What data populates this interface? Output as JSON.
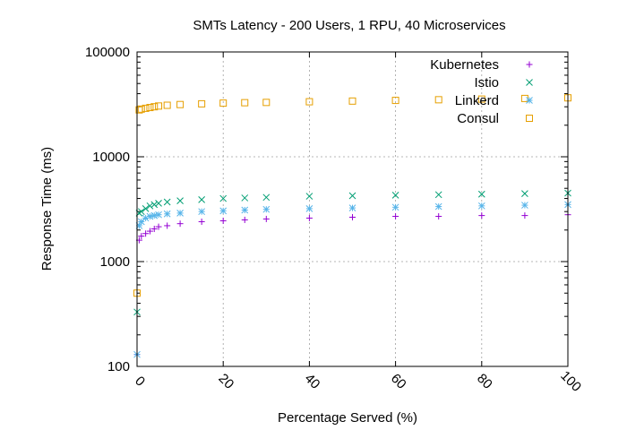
{
  "chart_data": {
    "type": "scatter",
    "title": "SMTs Latency - 200 Users, 1 RPU, 40 Microservices",
    "xlabel": "Percentage Served (%)",
    "ylabel": "Response Time (ms)",
    "xlim": [
      0,
      100
    ],
    "ylim": [
      100,
      100000
    ],
    "y_scale": "log",
    "grid": true,
    "legend_position": "top-right",
    "x_ticks": [
      "0",
      "20",
      "40",
      "60",
      "80",
      "100"
    ],
    "y_ticks": [
      "100",
      "1000",
      "10000",
      "100000"
    ],
    "x_tick_values": [
      0,
      20,
      40,
      60,
      80,
      100
    ],
    "y_tick_values": [
      100,
      1000,
      10000,
      100000
    ],
    "series": [
      {
        "name": "Kubernetes",
        "marker": "plus",
        "color": "#9400d3",
        "x": [
          0,
          0.5,
          1,
          2,
          3,
          4,
          5,
          7,
          10,
          15,
          20,
          25,
          30,
          40,
          50,
          60,
          70,
          80,
          90,
          100
        ],
        "y": [
          130,
          1600,
          1750,
          1850,
          1950,
          2050,
          2150,
          2200,
          2300,
          2400,
          2450,
          2500,
          2550,
          2600,
          2650,
          2700,
          2700,
          2750,
          2750,
          2800
        ]
      },
      {
        "name": "Istio",
        "marker": "cross",
        "color": "#009e73",
        "x": [
          0,
          0.5,
          1,
          2,
          3,
          4,
          5,
          7,
          10,
          15,
          20,
          25,
          30,
          40,
          50,
          60,
          70,
          80,
          90,
          100
        ],
        "y": [
          330,
          2900,
          3000,
          3200,
          3400,
          3500,
          3600,
          3700,
          3800,
          3900,
          4000,
          4050,
          4100,
          4200,
          4250,
          4300,
          4350,
          4400,
          4450,
          4500
        ]
      },
      {
        "name": "Linkerd",
        "marker": "asterisk",
        "color": "#56b4e9",
        "x": [
          0,
          0.5,
          1,
          2,
          3,
          4,
          5,
          7,
          10,
          15,
          20,
          25,
          30,
          40,
          50,
          60,
          70,
          80,
          90,
          100
        ],
        "y": [
          130,
          2200,
          2400,
          2600,
          2700,
          2750,
          2800,
          2850,
          2900,
          3000,
          3050,
          3100,
          3150,
          3200,
          3250,
          3300,
          3350,
          3400,
          3450,
          3500
        ]
      },
      {
        "name": "Consul",
        "marker": "square",
        "color": "#e69f00",
        "x": [
          0,
          0.5,
          1,
          2,
          3,
          4,
          5,
          7,
          10,
          15,
          20,
          25,
          30,
          40,
          50,
          60,
          70,
          80,
          90,
          100
        ],
        "y": [
          500,
          28000,
          28500,
          29000,
          29500,
          30000,
          30500,
          31000,
          31500,
          32000,
          32500,
          32800,
          33000,
          33500,
          34000,
          34500,
          35000,
          35500,
          36000,
          36500
        ]
      }
    ]
  }
}
